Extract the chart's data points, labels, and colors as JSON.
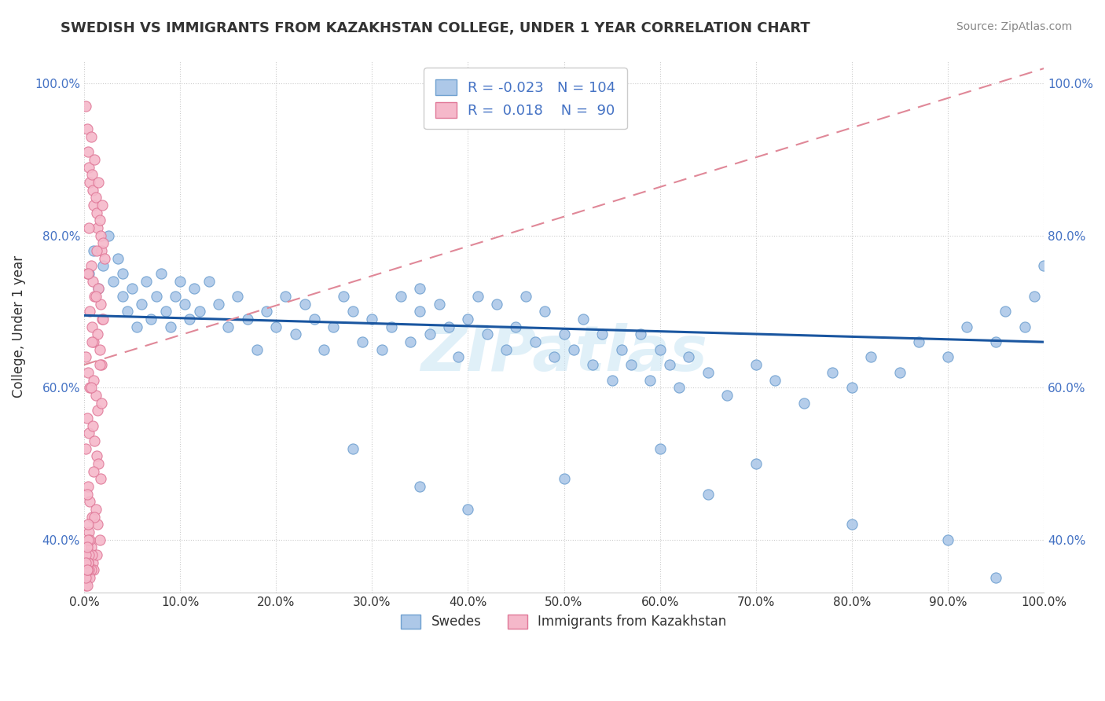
{
  "title": "SWEDISH VS IMMIGRANTS FROM KAZAKHSTAN COLLEGE, UNDER 1 YEAR CORRELATION CHART",
  "source": "Source: ZipAtlas.com",
  "ylabel": "College, Under 1 year",
  "xlim": [
    0.0,
    1.0
  ],
  "ylim": [
    0.33,
    1.03
  ],
  "x_ticks": [
    0.0,
    0.1,
    0.2,
    0.3,
    0.4,
    0.5,
    0.6,
    0.7,
    0.8,
    0.9,
    1.0
  ],
  "y_ticks": [
    0.4,
    0.6,
    0.8,
    1.0
  ],
  "swedes_color": "#adc8e8",
  "kazakhstan_color": "#f5b8ca",
  "swedes_edge": "#6fa0d0",
  "kazakhstan_edge": "#e07898",
  "trend_swedes_color": "#1a56a0",
  "trend_kazakhstan_color": "#e08898",
  "legend_r_swedes": "-0.023",
  "legend_n_swedes": "104",
  "legend_r_kazakhstan": "0.018",
  "legend_n_kazakhstan": "90",
  "legend_label_swedes": "Swedes",
  "legend_label_kazakhstan": "Immigrants from Kazakhstan",
  "watermark": "ZIPatlas",
  "swedes_x": [
    0.005,
    0.01,
    0.015,
    0.02,
    0.025,
    0.03,
    0.035,
    0.04,
    0.04,
    0.045,
    0.05,
    0.055,
    0.06,
    0.065,
    0.07,
    0.075,
    0.08,
    0.085,
    0.09,
    0.095,
    0.1,
    0.105,
    0.11,
    0.115,
    0.12,
    0.13,
    0.14,
    0.15,
    0.16,
    0.17,
    0.18,
    0.19,
    0.2,
    0.21,
    0.22,
    0.23,
    0.24,
    0.25,
    0.26,
    0.27,
    0.28,
    0.29,
    0.3,
    0.31,
    0.32,
    0.33,
    0.34,
    0.35,
    0.35,
    0.36,
    0.37,
    0.38,
    0.39,
    0.4,
    0.41,
    0.42,
    0.43,
    0.44,
    0.45,
    0.46,
    0.47,
    0.48,
    0.49,
    0.5,
    0.51,
    0.52,
    0.53,
    0.54,
    0.55,
    0.56,
    0.57,
    0.58,
    0.59,
    0.6,
    0.61,
    0.62,
    0.63,
    0.65,
    0.67,
    0.7,
    0.72,
    0.75,
    0.78,
    0.8,
    0.82,
    0.85,
    0.87,
    0.9,
    0.92,
    0.95,
    0.96,
    0.98,
    0.99,
    1.0,
    0.28,
    0.35,
    0.4,
    0.5,
    0.6,
    0.65,
    0.7,
    0.8,
    0.9,
    0.95
  ],
  "swedes_y": [
    0.75,
    0.78,
    0.73,
    0.76,
    0.8,
    0.74,
    0.77,
    0.72,
    0.75,
    0.7,
    0.73,
    0.68,
    0.71,
    0.74,
    0.69,
    0.72,
    0.75,
    0.7,
    0.68,
    0.72,
    0.74,
    0.71,
    0.69,
    0.73,
    0.7,
    0.74,
    0.71,
    0.68,
    0.72,
    0.69,
    0.65,
    0.7,
    0.68,
    0.72,
    0.67,
    0.71,
    0.69,
    0.65,
    0.68,
    0.72,
    0.7,
    0.66,
    0.69,
    0.65,
    0.68,
    0.72,
    0.66,
    0.7,
    0.73,
    0.67,
    0.71,
    0.68,
    0.64,
    0.69,
    0.72,
    0.67,
    0.71,
    0.65,
    0.68,
    0.72,
    0.66,
    0.7,
    0.64,
    0.67,
    0.65,
    0.69,
    0.63,
    0.67,
    0.61,
    0.65,
    0.63,
    0.67,
    0.61,
    0.65,
    0.63,
    0.6,
    0.64,
    0.62,
    0.59,
    0.63,
    0.61,
    0.58,
    0.62,
    0.6,
    0.64,
    0.62,
    0.66,
    0.64,
    0.68,
    0.66,
    0.7,
    0.68,
    0.72,
    0.76,
    0.52,
    0.47,
    0.44,
    0.48,
    0.52,
    0.46,
    0.5,
    0.42,
    0.4,
    0.35
  ],
  "kazakhstan_x": [
    0.002,
    0.003,
    0.004,
    0.005,
    0.006,
    0.007,
    0.008,
    0.009,
    0.01,
    0.011,
    0.012,
    0.013,
    0.014,
    0.015,
    0.016,
    0.017,
    0.018,
    0.019,
    0.02,
    0.021,
    0.003,
    0.005,
    0.007,
    0.009,
    0.011,
    0.013,
    0.015,
    0.017,
    0.019,
    0.004,
    0.006,
    0.008,
    0.01,
    0.012,
    0.014,
    0.016,
    0.018,
    0.02,
    0.002,
    0.004,
    0.006,
    0.008,
    0.01,
    0.012,
    0.014,
    0.016,
    0.018,
    0.003,
    0.005,
    0.007,
    0.009,
    0.011,
    0.013,
    0.015,
    0.017,
    0.002,
    0.004,
    0.006,
    0.008,
    0.01,
    0.012,
    0.014,
    0.016,
    0.003,
    0.005,
    0.007,
    0.009,
    0.011,
    0.013,
    0.002,
    0.004,
    0.006,
    0.008,
    0.01,
    0.003,
    0.005,
    0.007,
    0.002,
    0.004,
    0.006,
    0.003,
    0.005,
    0.002,
    0.004,
    0.003,
    0.002,
    0.004,
    0.003,
    0.002,
    0.003
  ],
  "kazakhstan_y": [
    0.97,
    0.94,
    0.91,
    0.89,
    0.87,
    0.93,
    0.88,
    0.86,
    0.84,
    0.9,
    0.85,
    0.83,
    0.81,
    0.87,
    0.82,
    0.8,
    0.78,
    0.84,
    0.79,
    0.77,
    0.75,
    0.81,
    0.76,
    0.74,
    0.72,
    0.78,
    0.73,
    0.71,
    0.69,
    0.75,
    0.7,
    0.68,
    0.66,
    0.72,
    0.67,
    0.65,
    0.63,
    0.69,
    0.64,
    0.62,
    0.6,
    0.66,
    0.61,
    0.59,
    0.57,
    0.63,
    0.58,
    0.56,
    0.54,
    0.6,
    0.55,
    0.53,
    0.51,
    0.5,
    0.48,
    0.52,
    0.47,
    0.45,
    0.43,
    0.49,
    0.44,
    0.42,
    0.4,
    0.46,
    0.41,
    0.39,
    0.37,
    0.43,
    0.38,
    0.36,
    0.42,
    0.4,
    0.38,
    0.36,
    0.35,
    0.38,
    0.36,
    0.34,
    0.37,
    0.35,
    0.34,
    0.36,
    0.35,
    0.37,
    0.36,
    0.38,
    0.4,
    0.39,
    0.37,
    0.36
  ]
}
